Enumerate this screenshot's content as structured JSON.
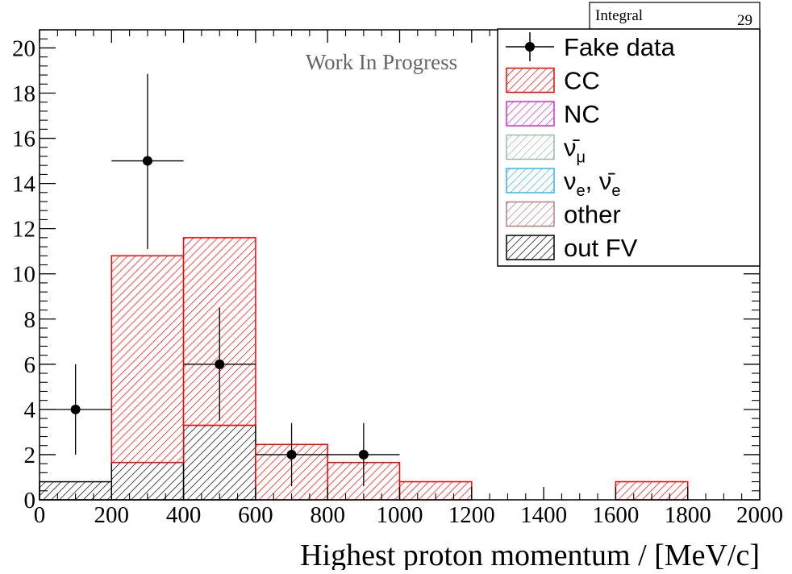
{
  "chart_data": {
    "type": "bar",
    "stacked": true,
    "xlabel": "Highest proton momentum / [MeV/c]",
    "ylabel": "",
    "xlim": [
      0,
      2000
    ],
    "ylim": [
      0,
      20.8
    ],
    "grid": false,
    "legend_position": "top-right",
    "annotation": "Work In Progress",
    "stats_box": {
      "label": "Integral",
      "value": "29"
    },
    "x_ticks": [
      0,
      200,
      400,
      600,
      800,
      1000,
      1200,
      1400,
      1600,
      1800,
      2000
    ],
    "y_ticks": [
      0,
      2,
      4,
      6,
      8,
      10,
      12,
      14,
      16,
      18,
      20
    ],
    "bin_edges": [
      0,
      200,
      400,
      600,
      800,
      1000,
      1200,
      1400,
      1600,
      1800,
      2000
    ],
    "series": [
      {
        "name": "out FV",
        "color": "#000000",
        "values": [
          0.8,
          1.65,
          3.3,
          0,
          0,
          0,
          0,
          0,
          0,
          0
        ]
      },
      {
        "name": "other",
        "color": "#b08080",
        "values": [
          0,
          0,
          0,
          0,
          0,
          0,
          0,
          0,
          0,
          0
        ]
      },
      {
        "name": "νe, ν̄e",
        "color": "#33b5e5",
        "values": [
          0,
          0,
          0,
          0,
          0,
          0,
          0,
          0,
          0,
          0
        ]
      },
      {
        "name": "ν̄μ",
        "color": "#99bbaa",
        "values": [
          0,
          0,
          0,
          0,
          0,
          0,
          0,
          0,
          0,
          0
        ]
      },
      {
        "name": "NC",
        "color": "#cc33cc",
        "values": [
          0,
          0,
          0,
          0,
          0,
          0,
          0,
          0,
          0,
          0
        ]
      },
      {
        "name": "CC",
        "color": "#ff0000",
        "values": [
          0,
          9.15,
          8.3,
          2.45,
          1.65,
          0.8,
          0,
          0,
          0.8,
          0
        ]
      }
    ],
    "data_points": {
      "name": "Fake data",
      "x": [
        100,
        300,
        500,
        700,
        900
      ],
      "y": [
        4,
        15,
        6,
        2,
        2
      ],
      "y_err_low": [
        2,
        3.9,
        2.5,
        1.4,
        1.4
      ],
      "y_err_high": [
        2,
        3.85,
        2.5,
        1.4,
        1.4
      ],
      "x_err": [
        100,
        100,
        100,
        100,
        100
      ]
    },
    "legend": [
      {
        "label": "Fake data",
        "kind": "marker",
        "color": "#000000"
      },
      {
        "label": "CC",
        "kind": "hatch",
        "color": "#ff0000"
      },
      {
        "label": "NC",
        "kind": "hatch",
        "color": "#cc33cc"
      },
      {
        "label": "ν̄μ",
        "kind": "hatch",
        "color": "#99bbaa",
        "base": "ν̄",
        "sub": "μ"
      },
      {
        "label": "νe, ν̄e",
        "kind": "hatch",
        "color": "#33b5e5",
        "base1": "ν",
        "sub1": "e",
        "sep": ", ",
        "base2": "ν̄",
        "sub2": "e"
      },
      {
        "label": "other",
        "kind": "hatch",
        "color": "#b08080"
      },
      {
        "label": "out FV",
        "kind": "hatch",
        "color": "#000000"
      }
    ]
  }
}
